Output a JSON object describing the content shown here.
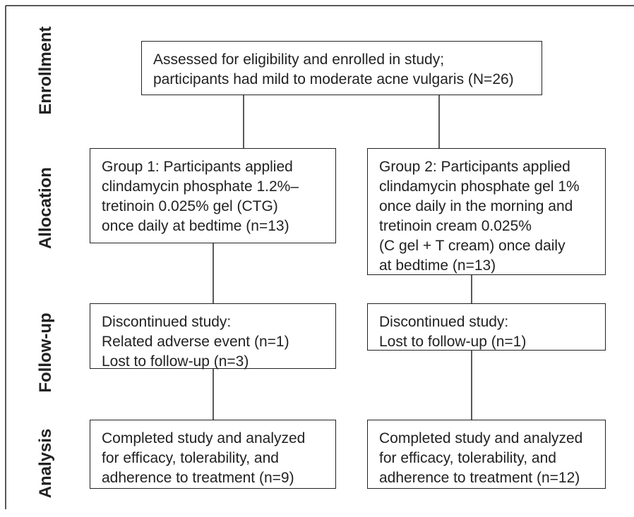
{
  "stages": [
    "Enrollment",
    "Allocation",
    "Follow-up",
    "Analysis"
  ],
  "nodes": [
    {
      "lines": [
        "Assessed for eligibility and enrolled in study;",
        "participants had mild to moderate acne vulgaris (N=26)"
      ]
    },
    {
      "lines": [
        "Group 1: Participants applied",
        "clindamycin phosphate 1.2%–",
        "tretinoin 0.025% gel (CTG)",
        "once daily at bedtime (n=13)"
      ]
    },
    {
      "lines": [
        "Group 2: Participants applied",
        "clindamycin phosphate gel 1%",
        "once daily in the morning and",
        "tretinoin cream 0.025%",
        "(C gel + T cream) once daily",
        "at bedtime (n=13)"
      ]
    },
    {
      "lines": [
        "Discontinued study:",
        "Related adverse event (n=1)",
        "Lost to follow-up (n=3)"
      ]
    },
    {
      "lines": [
        "Discontinued study:",
        "Lost to follow-up (n=1)"
      ]
    },
    {
      "lines": [
        "Completed study and analyzed",
        "for efficacy, tolerability, and",
        "adherence to treatment (n=9)"
      ]
    },
    {
      "lines": [
        "Completed study and analyzed",
        "for efficacy, tolerability, and",
        "adherence to treatment (n=12)"
      ]
    }
  ]
}
